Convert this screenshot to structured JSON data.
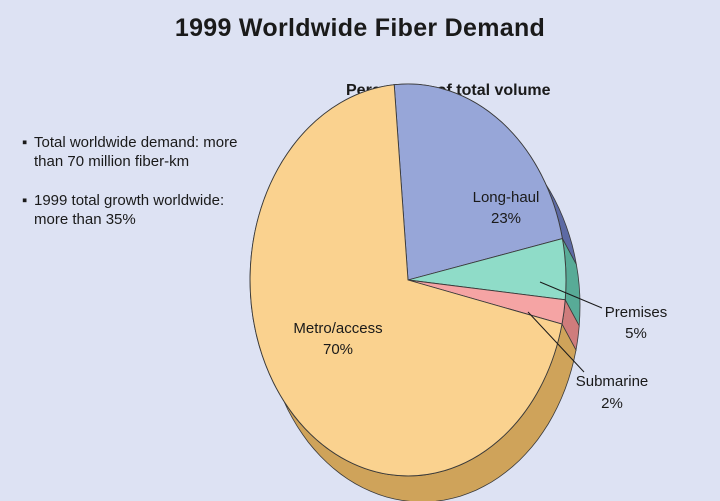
{
  "chart_data": {
    "type": "pie",
    "title": "1999 Worldwide Fiber Demand",
    "subtitle": "Percentage of total volume",
    "unit": "%",
    "slices": [
      {
        "label": "Long-haul",
        "value": 23,
        "value_label": "23%",
        "color": "#97a6d8",
        "side_color": "#5d6aa4"
      },
      {
        "label": "Premises",
        "value": 5,
        "value_label": "5%",
        "color": "#8fdcc8",
        "side_color": "#58ab97"
      },
      {
        "label": "Submarine",
        "value": 2,
        "value_label": "2%",
        "color": "#f5a4a4",
        "side_color": "#cf7c7c"
      },
      {
        "label": "Metro/access",
        "value": 70,
        "value_label": "70%",
        "color": "#fad28f",
        "side_color": "#cfa35a"
      }
    ],
    "style": "3d-tilted"
  },
  "notes": [
    {
      "text": "Total worldwide demand: more than 70 million fiber-km"
    },
    {
      "text": "1999 total growth worldwide: more than 35%"
    }
  ]
}
